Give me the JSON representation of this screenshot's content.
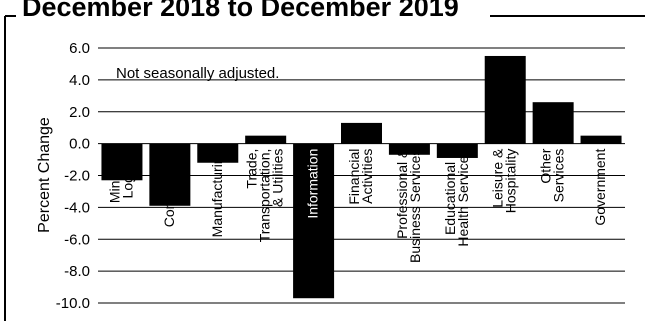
{
  "chart_data": {
    "type": "bar",
    "title": "December 2018 to December 2019",
    "ylabel": "Percent Change",
    "annotation": "Not seasonally adjusted.",
    "ylim": [
      -10.0,
      6.0
    ],
    "yticks": [
      "6.0",
      "4.0",
      "2.0",
      "0.0",
      "-2.0",
      "-4.0",
      "-6.0",
      "-8.0",
      "-10.0"
    ],
    "grid": true,
    "bar_color": "#000000",
    "categories": [
      {
        "lines": [
          "Mining &",
          "Logging"
        ]
      },
      {
        "lines": [
          "Construction"
        ]
      },
      {
        "lines": [
          "Manufacturing"
        ]
      },
      {
        "lines": [
          "Trade,",
          "Transportation,",
          "& Utilities"
        ]
      },
      {
        "lines": [
          "Information"
        ]
      },
      {
        "lines": [
          "Financial",
          "Activities"
        ]
      },
      {
        "lines": [
          "Professional &",
          "Business Services"
        ]
      },
      {
        "lines": [
          "Educational &",
          "Health Services"
        ]
      },
      {
        "lines": [
          "Leisure &",
          "Hospitality"
        ]
      },
      {
        "lines": [
          "Other",
          "Services"
        ]
      },
      {
        "lines": [
          "Government"
        ]
      }
    ],
    "values": [
      -2.3,
      -3.9,
      -1.2,
      0.5,
      -9.7,
      1.3,
      -0.7,
      -0.9,
      5.5,
      2.6,
      0.5
    ]
  }
}
